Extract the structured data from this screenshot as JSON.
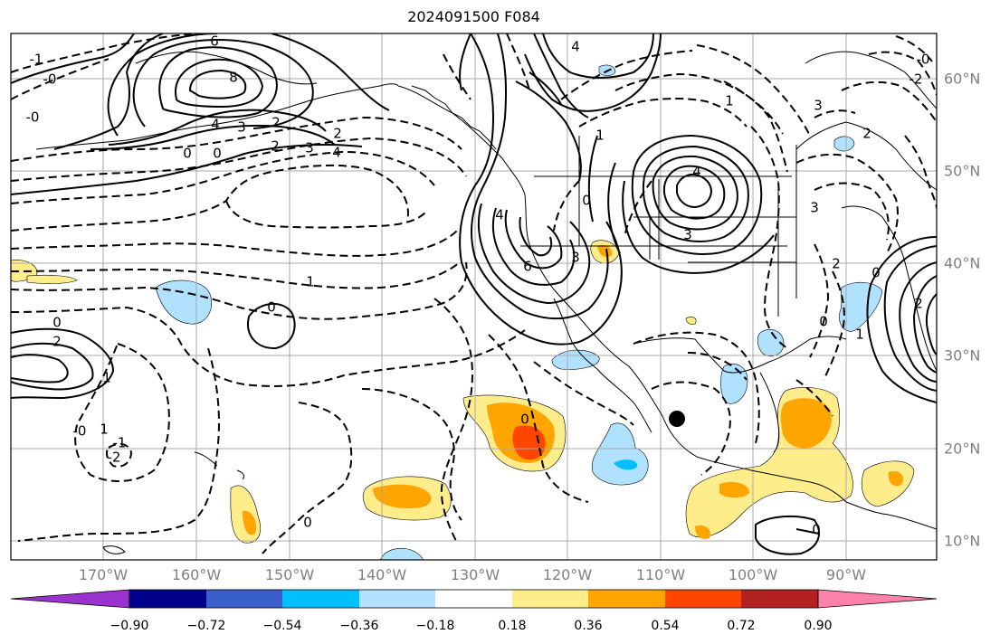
{
  "title": "2024091500 F084",
  "lon_labels": [
    "170°W",
    "160°W",
    "150°W",
    "140°W",
    "130°W",
    "120°W",
    "110°W",
    "100°W",
    "90°W"
  ],
  "lat_labels": [
    "60°N",
    "50°N",
    "40°N",
    "30°N",
    "20°N",
    "10°N"
  ],
  "colorbar": {
    "ticks": [
      "−0.90",
      "−0.72",
      "−0.54",
      "−0.36",
      "−0.18",
      "0.18",
      "0.36",
      "0.54",
      "0.72",
      "0.90"
    ],
    "colors": [
      "#9a32cd",
      "#00008b",
      "#3a5fcd",
      "#00bfff",
      "#b0e2ff",
      "#ffffff",
      "#ffec8b",
      "#ffa500",
      "#ff4500",
      "#b22222",
      "#ff82ab"
    ]
  },
  "contour_labels": {
    "solid": [
      "6",
      "8",
      "4",
      "3",
      "2",
      "0",
      "0",
      "0",
      "2",
      "1",
      "4",
      "6",
      "3",
      "4",
      "3",
      "1",
      "0",
      "2",
      "4",
      "0"
    ],
    "dashed": [
      "-1",
      "-0",
      "-0",
      "2",
      "3",
      "4",
      "2",
      "1",
      "0",
      "-0",
      "1",
      "-2",
      "-1",
      "0",
      "3",
      "2",
      "1",
      "0",
      "-2",
      "-0",
      "0",
      "3",
      "2",
      "1",
      "0"
    ]
  },
  "marker": "storm-center"
}
